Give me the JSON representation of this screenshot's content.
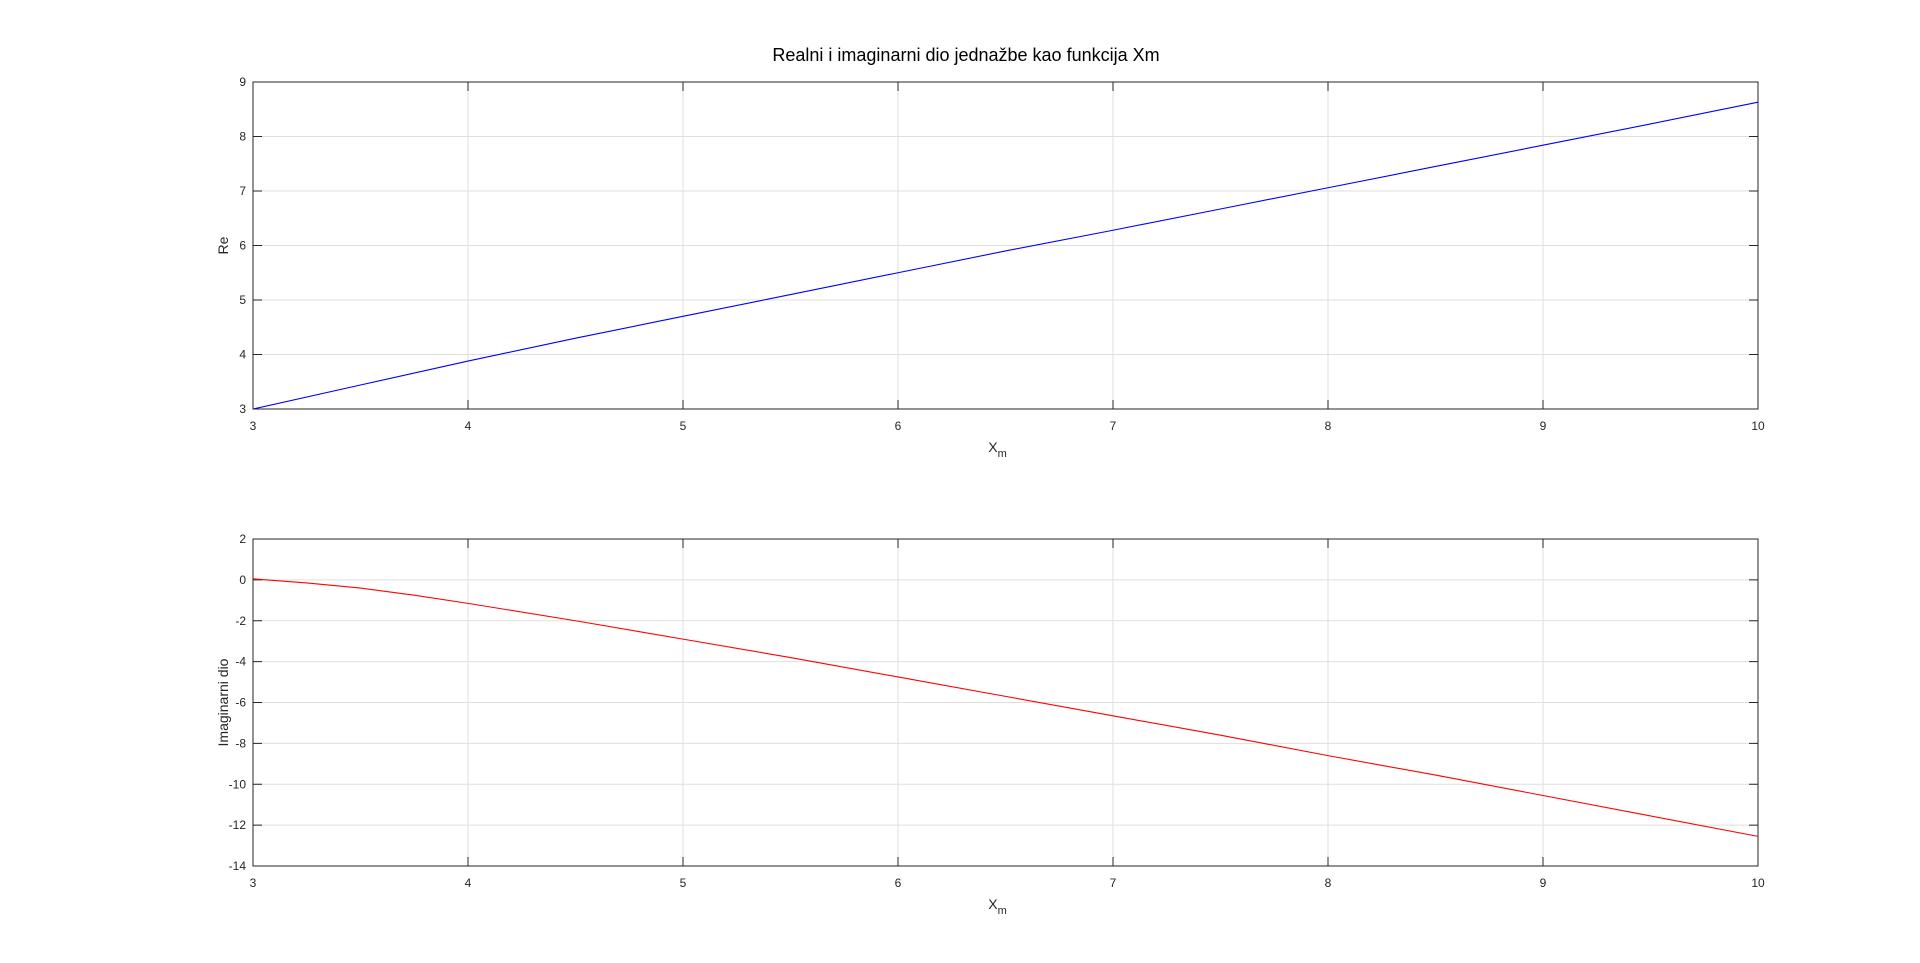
{
  "figure": {
    "title": "Realni i imaginarni dio jednažbe kao funkcija Xm"
  },
  "chart_data": [
    {
      "type": "line",
      "title": "Realni i imaginarni dio jednažbe kao funkcija Xm",
      "xlabel": "X",
      "xlabel_subscript": "m",
      "ylabel": "Re",
      "xlim": [
        3,
        10
      ],
      "ylim": [
        3,
        9
      ],
      "xticks": [
        3,
        4,
        5,
        6,
        7,
        8,
        9,
        10
      ],
      "yticks": [
        3,
        4,
        5,
        6,
        7,
        8,
        9
      ],
      "grid": true,
      "series": [
        {
          "color": "#0000ff",
          "x": [
            3,
            3.5,
            4,
            4.5,
            5,
            5.5,
            6,
            6.5,
            7,
            7.5,
            8,
            8.5,
            9,
            9.5,
            10
          ],
          "y": [
            3.0,
            3.44,
            3.88,
            4.3,
            4.7,
            5.1,
            5.5,
            5.9,
            6.28,
            6.67,
            7.06,
            7.45,
            7.84,
            8.23,
            8.63
          ]
        }
      ]
    },
    {
      "type": "line",
      "xlabel": "X",
      "xlabel_subscript": "m",
      "ylabel": "Imaginarni dio",
      "xlim": [
        3,
        10
      ],
      "ylim": [
        -14,
        2
      ],
      "xticks": [
        3,
        4,
        5,
        6,
        7,
        8,
        9,
        10
      ],
      "yticks": [
        -14,
        -12,
        -10,
        -8,
        -6,
        -4,
        -2,
        0,
        2
      ],
      "grid": true,
      "series": [
        {
          "color": "#ff0000",
          "x": [
            3,
            3.25,
            3.5,
            3.75,
            4,
            4.5,
            5,
            5.5,
            6,
            6.5,
            7,
            7.5,
            8,
            8.5,
            9,
            9.5,
            10
          ],
          "y": [
            0.05,
            -0.15,
            -0.4,
            -0.75,
            -1.15,
            -2.0,
            -2.9,
            -3.8,
            -4.75,
            -5.7,
            -6.65,
            -7.6,
            -8.6,
            -9.55,
            -10.55,
            -11.55,
            -12.55
          ]
        }
      ]
    }
  ]
}
